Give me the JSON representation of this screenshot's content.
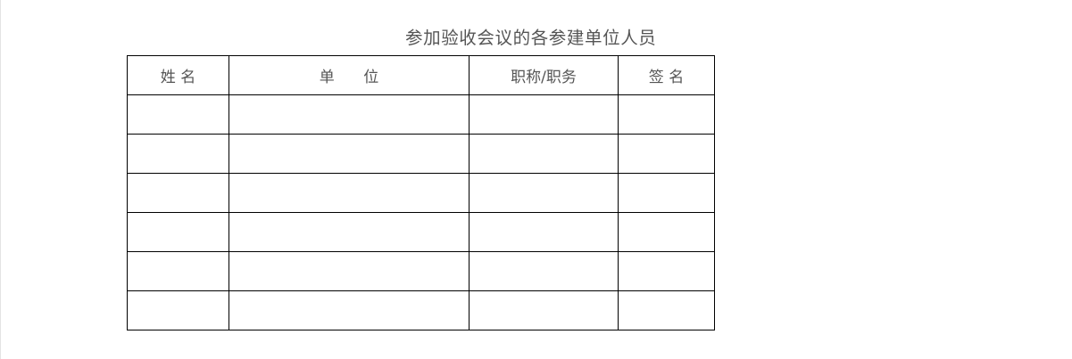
{
  "document": {
    "title": "参加验收会议的各参建单位人员",
    "table": {
      "headers": [
        "姓 名",
        "单      位",
        "职称/职务",
        "签 名"
      ],
      "rows": [
        [
          "",
          "",
          "",
          ""
        ],
        [
          "",
          "",
          "",
          ""
        ],
        [
          "",
          "",
          "",
          ""
        ],
        [
          "",
          "",
          "",
          ""
        ],
        [
          "",
          "",
          "",
          ""
        ],
        [
          "",
          "",
          "",
          ""
        ]
      ]
    }
  }
}
